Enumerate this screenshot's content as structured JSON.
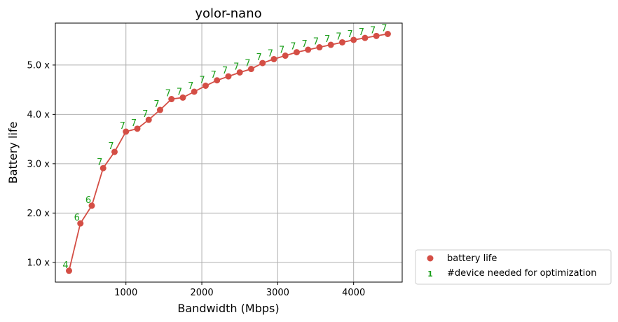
{
  "chart_data": {
    "type": "line",
    "title": "yolor-nano",
    "xlabel": "Bandwidth (Mbps)",
    "ylabel": "Battery life",
    "xlim": [
      70,
      4640
    ],
    "ylim": [
      0.6,
      5.85
    ],
    "xticks": [
      1000,
      2000,
      3000,
      4000
    ],
    "xtick_labels": [
      "1000",
      "2000",
      "3000",
      "4000"
    ],
    "yticks": [
      1.0,
      2.0,
      3.0,
      4.0,
      5.0
    ],
    "ytick_labels": [
      "1.0 x",
      "2.0 x",
      "3.0 x",
      "4.0 x",
      "5.0 x"
    ],
    "grid": true,
    "legend_placement": "outside-bottom-right",
    "line_color": "#d44e45",
    "label_color": "#1a9e1a",
    "series": [
      {
        "name": "battery life",
        "x": [
          250,
          400,
          550,
          700,
          850,
          1000,
          1150,
          1300,
          1450,
          1600,
          1750,
          1900,
          2050,
          2200,
          2350,
          2500,
          2650,
          2800,
          2950,
          3100,
          3250,
          3400,
          3550,
          3700,
          3850,
          4000,
          4150,
          4300,
          4450
        ],
        "y": [
          0.83,
          1.79,
          2.15,
          2.91,
          3.24,
          3.65,
          3.71,
          3.89,
          4.09,
          4.31,
          4.34,
          4.46,
          4.58,
          4.69,
          4.77,
          4.85,
          4.92,
          5.04,
          5.12,
          5.19,
          5.26,
          5.31,
          5.36,
          5.41,
          5.46,
          5.51,
          5.55,
          5.59,
          5.63
        ]
      }
    ],
    "device_counts": [
      "4",
      "6",
      "6",
      "7",
      "7",
      "7",
      "7",
      "7",
      "7",
      "7",
      "7",
      "7",
      "7",
      "7",
      "7",
      "7",
      "7",
      "7",
      "7",
      "7",
      "7",
      "7",
      "7",
      "7",
      "7",
      "7",
      "7",
      "7",
      "7"
    ],
    "legend": [
      {
        "label": "battery life",
        "marker": "circle"
      },
      {
        "label": "#device needed for optimization",
        "marker": "text",
        "marker_text": "1"
      }
    ]
  }
}
